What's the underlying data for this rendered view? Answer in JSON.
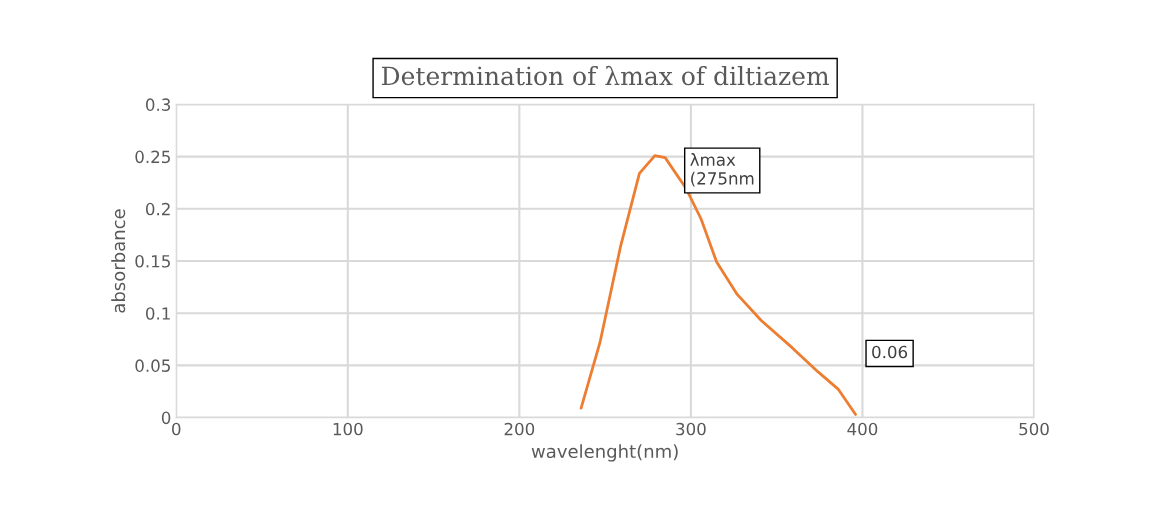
{
  "chart_data": {
    "type": "line",
    "title": "Determination of λmax of diltiazem",
    "xlabel": "wavelenght(nm)",
    "ylabel": "absorbance",
    "series": [
      {
        "color": "#ed7d31",
        "x": [
          236,
          247,
          259,
          270,
          279,
          285,
          297,
          306,
          315,
          327,
          341,
          359,
          374,
          386,
          396
        ],
        "values": [
          0.009,
          0.072,
          0.164,
          0.234,
          0.251,
          0.249,
          0.22,
          0.19,
          0.149,
          0.118,
          0.093,
          0.067,
          0.044,
          0.027,
          0.003
        ]
      }
    ],
    "xlim": [
      0,
      500
    ],
    "xticks": [
      0,
      100,
      200,
      300,
      400,
      500
    ],
    "ylim": [
      0,
      0.3
    ],
    "yticks": [
      0,
      0.05,
      0.1,
      0.15,
      0.2,
      0.25,
      0.3
    ],
    "grid": true,
    "legend": false,
    "marker": "none",
    "line_style": "solid",
    "annotations": [
      {
        "text": "λmax\n(275nm",
        "x": 275,
        "y": 0.25
      },
      "0.06"
    ]
  }
}
